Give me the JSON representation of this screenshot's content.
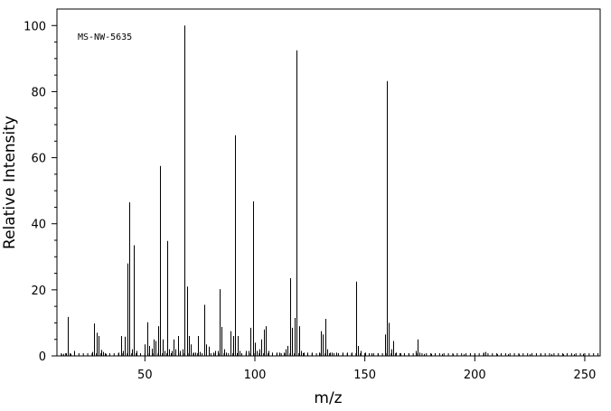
{
  "chart_data": {
    "type": "bar",
    "annotation": "MS-NW-5635",
    "xlabel": "m/z",
    "ylabel": "Relative Intensity",
    "xlim": [
      10,
      257
    ],
    "ylim": [
      0,
      105
    ],
    "xticks": [
      50,
      100,
      150,
      200,
      250
    ],
    "yticks": [
      0,
      20,
      40,
      60,
      80,
      100
    ],
    "x_minor_step": 2,
    "peaks": [
      {
        "x": 12,
        "y": 0.4
      },
      {
        "x": 13,
        "y": 0.6
      },
      {
        "x": 14,
        "y": 0.8
      },
      {
        "x": 15,
        "y": 11.8
      },
      {
        "x": 16,
        "y": 0.6
      },
      {
        "x": 18,
        "y": 1.5
      },
      {
        "x": 26,
        "y": 1.2
      },
      {
        "x": 27,
        "y": 9.8
      },
      {
        "x": 28,
        "y": 7.0
      },
      {
        "x": 29,
        "y": 6.0
      },
      {
        "x": 30,
        "y": 1.8
      },
      {
        "x": 31,
        "y": 1.2
      },
      {
        "x": 32,
        "y": 0.6
      },
      {
        "x": 38,
        "y": 1.0
      },
      {
        "x": 39,
        "y": 6.0
      },
      {
        "x": 40,
        "y": 1.5
      },
      {
        "x": 41,
        "y": 5.8
      },
      {
        "x": 42,
        "y": 28.0
      },
      {
        "x": 43,
        "y": 46.5
      },
      {
        "x": 44,
        "y": 2.0
      },
      {
        "x": 45,
        "y": 33.5
      },
      {
        "x": 46,
        "y": 1.5
      },
      {
        "x": 50,
        "y": 3.5
      },
      {
        "x": 51,
        "y": 10.2
      },
      {
        "x": 52,
        "y": 3.0
      },
      {
        "x": 53,
        "y": 2.2
      },
      {
        "x": 54,
        "y": 5.0
      },
      {
        "x": 55,
        "y": 4.5
      },
      {
        "x": 56,
        "y": 9.0
      },
      {
        "x": 57,
        "y": 57.5
      },
      {
        "x": 58,
        "y": 5.0
      },
      {
        "x": 59,
        "y": 1.5
      },
      {
        "x": 60,
        "y": 34.8
      },
      {
        "x": 61,
        "y": 2.0
      },
      {
        "x": 62,
        "y": 1.5
      },
      {
        "x": 63,
        "y": 5.0
      },
      {
        "x": 64,
        "y": 2.0
      },
      {
        "x": 65,
        "y": 6.0
      },
      {
        "x": 66,
        "y": 1.5
      },
      {
        "x": 67,
        "y": 2.0
      },
      {
        "x": 68,
        "y": 100.0
      },
      {
        "x": 69,
        "y": 21.0
      },
      {
        "x": 70,
        "y": 6.0
      },
      {
        "x": 71,
        "y": 3.5
      },
      {
        "x": 72,
        "y": 1.0
      },
      {
        "x": 73,
        "y": 1.0
      },
      {
        "x": 74,
        "y": 6.0
      },
      {
        "x": 75,
        "y": 1.2
      },
      {
        "x": 77,
        "y": 15.5
      },
      {
        "x": 78,
        "y": 3.5
      },
      {
        "x": 79,
        "y": 2.8
      },
      {
        "x": 81,
        "y": 1.0
      },
      {
        "x": 82,
        "y": 1.5
      },
      {
        "x": 83,
        "y": 1.5
      },
      {
        "x": 84,
        "y": 20.2
      },
      {
        "x": 85,
        "y": 8.8
      },
      {
        "x": 86,
        "y": 2.0
      },
      {
        "x": 87,
        "y": 1.0
      },
      {
        "x": 89,
        "y": 7.5
      },
      {
        "x": 90,
        "y": 6.0
      },
      {
        "x": 91,
        "y": 66.8
      },
      {
        "x": 92,
        "y": 6.0
      },
      {
        "x": 93,
        "y": 1.5
      },
      {
        "x": 94,
        "y": 0.6
      },
      {
        "x": 96,
        "y": 1.5
      },
      {
        "x": 97,
        "y": 1.5
      },
      {
        "x": 98,
        "y": 8.5
      },
      {
        "x": 99,
        "y": 46.8
      },
      {
        "x": 100,
        "y": 4.0
      },
      {
        "x": 101,
        "y": 1.5
      },
      {
        "x": 102,
        "y": 2.0
      },
      {
        "x": 103,
        "y": 5.0
      },
      {
        "x": 104,
        "y": 8.0
      },
      {
        "x": 105,
        "y": 9.0
      },
      {
        "x": 106,
        "y": 1.5
      },
      {
        "x": 108,
        "y": 1.0
      },
      {
        "x": 110,
        "y": 1.0
      },
      {
        "x": 111,
        "y": 1.0
      },
      {
        "x": 113,
        "y": 1.0
      },
      {
        "x": 114,
        "y": 2.0
      },
      {
        "x": 115,
        "y": 3.0
      },
      {
        "x": 116,
        "y": 23.5
      },
      {
        "x": 117,
        "y": 8.5
      },
      {
        "x": 118,
        "y": 11.5
      },
      {
        "x": 119,
        "y": 92.5
      },
      {
        "x": 120,
        "y": 9.0
      },
      {
        "x": 121,
        "y": 1.5
      },
      {
        "x": 122,
        "y": 1.0
      },
      {
        "x": 124,
        "y": 1.0
      },
      {
        "x": 126,
        "y": 1.0
      },
      {
        "x": 129,
        "y": 1.0
      },
      {
        "x": 130,
        "y": 7.5
      },
      {
        "x": 131,
        "y": 6.5
      },
      {
        "x": 132,
        "y": 11.2
      },
      {
        "x": 133,
        "y": 2.0
      },
      {
        "x": 134,
        "y": 1.0
      },
      {
        "x": 135,
        "y": 1.0
      },
      {
        "x": 137,
        "y": 1.0
      },
      {
        "x": 140,
        "y": 1.0
      },
      {
        "x": 142,
        "y": 1.0
      },
      {
        "x": 144,
        "y": 1.0
      },
      {
        "x": 146,
        "y": 22.5
      },
      {
        "x": 147,
        "y": 3.0
      },
      {
        "x": 148,
        "y": 1.5
      },
      {
        "x": 150,
        "y": 1.0
      },
      {
        "x": 153,
        "y": 0.8
      },
      {
        "x": 156,
        "y": 0.8
      },
      {
        "x": 159,
        "y": 6.5
      },
      {
        "x": 160,
        "y": 83.2
      },
      {
        "x": 161,
        "y": 10.0
      },
      {
        "x": 162,
        "y": 2.0
      },
      {
        "x": 163,
        "y": 4.5
      },
      {
        "x": 164,
        "y": 1.0
      },
      {
        "x": 166,
        "y": 0.8
      },
      {
        "x": 168,
        "y": 0.8
      },
      {
        "x": 170,
        "y": 0.8
      },
      {
        "x": 173,
        "y": 1.5
      },
      {
        "x": 174,
        "y": 5.0
      },
      {
        "x": 175,
        "y": 1.0
      },
      {
        "x": 177,
        "y": 0.6
      },
      {
        "x": 180,
        "y": 0.6
      },
      {
        "x": 185,
        "y": 0.6
      },
      {
        "x": 190,
        "y": 0.5
      },
      {
        "x": 195,
        "y": 0.5
      },
      {
        "x": 200,
        "y": 0.5
      },
      {
        "x": 204,
        "y": 1.0
      },
      {
        "x": 205,
        "y": 1.2
      },
      {
        "x": 210,
        "y": 0.5
      },
      {
        "x": 215,
        "y": 0.5
      },
      {
        "x": 220,
        "y": 0.5
      },
      {
        "x": 225,
        "y": 0.5
      },
      {
        "x": 230,
        "y": 0.5
      },
      {
        "x": 235,
        "y": 0.5
      },
      {
        "x": 240,
        "y": 0.5
      },
      {
        "x": 245,
        "y": 0.5
      },
      {
        "x": 249,
        "y": 0.6
      }
    ],
    "grid": false,
    "colors": {
      "axis": "#000000",
      "bars": "#000000",
      "background": "#ffffff"
    }
  }
}
